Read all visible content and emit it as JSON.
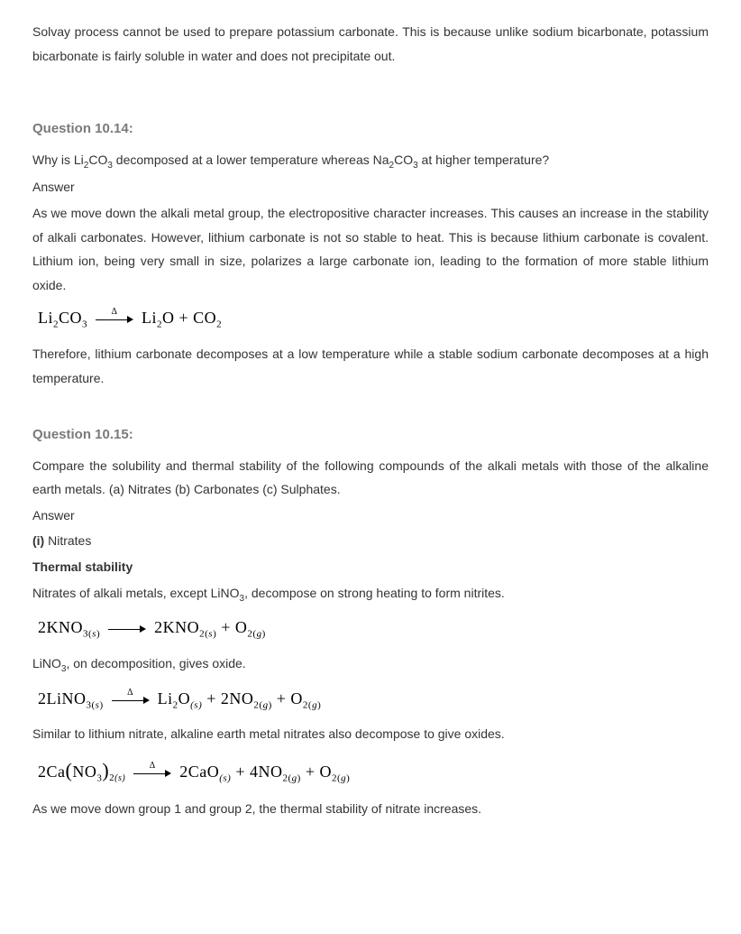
{
  "intro_para": "Solvay process cannot be used to prepare potassium carbonate. This is because unlike sodium bicarbonate, potassium bicarbonate is fairly soluble in water and does not precipitate out.",
  "q14": {
    "heading": "Question 10.14:",
    "question_pre": "Why is Li",
    "question_mid1": "CO",
    "question_mid2": " decomposed at a lower temperature whereas Na",
    "question_mid3": "CO",
    "question_post": " at higher temperature?",
    "answer_label": "Answer",
    "answer_p1": "As we move down the alkali metal group, the electropositive character increases. This causes an increase in the stability of alkali carbonates. However, lithium carbonate is not so stable to heat. This is because lithium carbonate is covalent. Lithium ion, being very small in size, polarizes a large carbonate ion, leading to the formation of more stable lithium oxide.",
    "eq1": {
      "lhs1": "Li",
      "lhs1_sub": "2",
      "lhs2": "CO",
      "lhs2_sub": "3",
      "rhs1": "Li",
      "rhs1_sub": "2",
      "rhs2": "O + CO",
      "rhs2_sub": "2",
      "delta": "Δ"
    },
    "answer_p2": "Therefore, lithium carbonate decomposes at a low temperature while a stable sodium carbonate decomposes at a high temperature."
  },
  "q15": {
    "heading": "Question 10.15:",
    "question": "Compare the solubility and thermal stability of the following compounds of the alkali metals with those of the alkaline earth metals. (a) Nitrates (b) Carbonates (c) Sulphates.",
    "answer_label": "Answer",
    "item_i_label": "(i) ",
    "item_i_text": "Nitrates",
    "thermal_heading": "Thermal stability",
    "p1_pre": "Nitrates of alkali metals, except LiNO",
    "p1_post": ", decompose on strong heating to form nitrites.",
    "eq2": {
      "lhs": "2KNO",
      "lhs_sub": "3(",
      "lhs_state": "s",
      "lhs_close": ")",
      "rhs1": "2KNO",
      "rhs1_sub": "2(",
      "rhs1_state": "s",
      "rhs1_close": ")",
      "plus": " + O",
      "rhs2_sub": "2(",
      "rhs2_state": "g",
      "rhs2_close": ")"
    },
    "p2_pre": "LiNO",
    "p2_post": ", on decomposition, gives oxide.",
    "eq3": {
      "lhs": "2LiNO",
      "lhs_sub": "3(",
      "lhs_state": "s",
      "lhs_close": ")",
      "delta": "Δ",
      "r1": "Li",
      "r1_sub": "2",
      "r1b": "O",
      "r1_state": "(s)",
      "r2": " + 2NO",
      "r2_sub": "2(",
      "r2_state": "g",
      "r2_close": ")",
      "r3": " + O",
      "r3_sub": "2(",
      "r3_state": "g",
      "r3_close": ")"
    },
    "p3": "Similar to lithium nitrate, alkaline earth metal nitrates also decompose to give oxides.",
    "eq4": {
      "lhs": "2Ca",
      "lhs_paren_open": "(",
      "lhs_inner": "NO",
      "lhs_inner_sub": "3",
      "lhs_paren_close": ")",
      "lhs_outer_sub": "2",
      "lhs_state": "(s)",
      "delta": "Δ",
      "r1": "2CaO",
      "r1_state": "(s)",
      "r2": " + 4NO",
      "r2_sub": "2(",
      "r2_state": "g",
      "r2_close": ")",
      "r3": " + O",
      "r3_sub": "2(",
      "r3_state": "g",
      "r3_close": ")"
    },
    "p4": "As we move down group 1 and group 2, the thermal stability of nitrate increases."
  }
}
